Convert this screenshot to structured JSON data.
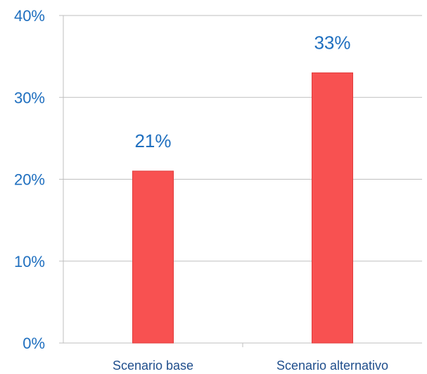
{
  "chart_data": {
    "type": "bar",
    "categories": [
      "Scenario base",
      "Scenario alternativo"
    ],
    "values": [
      21,
      33
    ],
    "data_labels": [
      "21%",
      "33%"
    ],
    "y_ticks": [
      "0%",
      "10%",
      "20%",
      "30%",
      "40%"
    ],
    "ylim": [
      0,
      40
    ],
    "grid": true,
    "legend": "none",
    "title": "",
    "xlabel": "",
    "ylabel": ""
  },
  "colors": {
    "bar": "#f85151",
    "bar_edge": "#e03c3c",
    "grid": "#bfbfbf",
    "tick_text": "#1f6fbf",
    "category_text": "#1f4e8c",
    "data_label_text": "#1f6fbf"
  }
}
